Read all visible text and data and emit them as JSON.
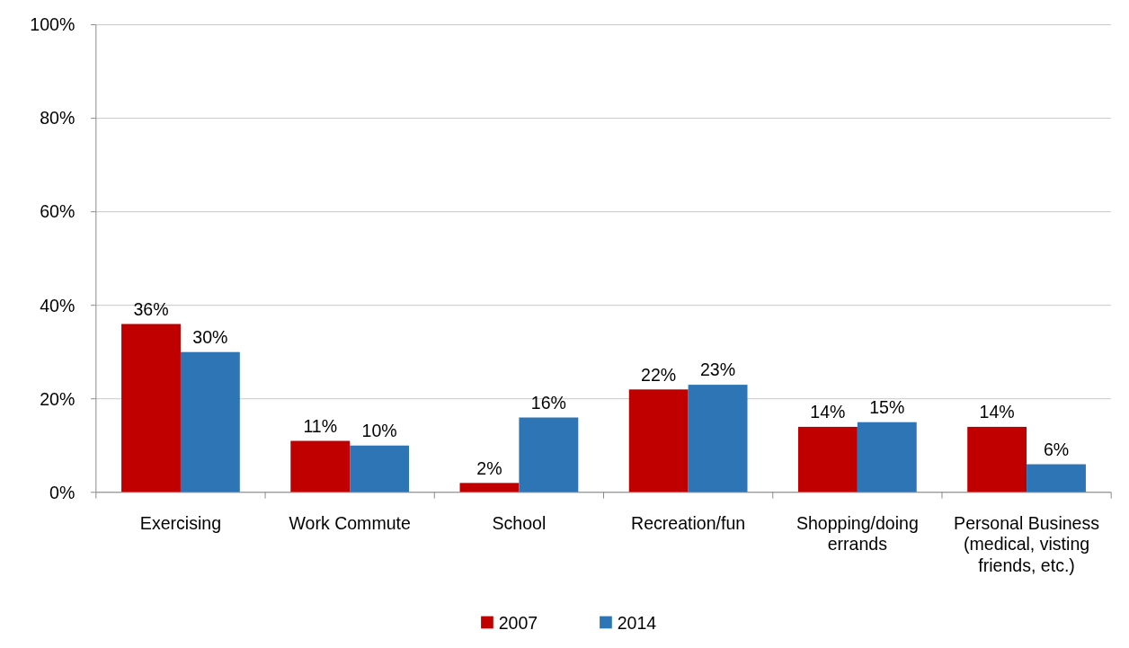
{
  "chart_data": {
    "type": "bar",
    "categories": [
      "Exercising",
      "Work Commute",
      "School",
      "Recreation/fun",
      "Shopping/doing errands",
      "Personal Business (medical, visting friends, etc.)"
    ],
    "series": [
      {
        "name": "2007",
        "color": "#c00000",
        "values": [
          36,
          11,
          2,
          22,
          14,
          14
        ],
        "value_labels": [
          "36%",
          "11%",
          "2%",
          "22%",
          "14%",
          "14%"
        ]
      },
      {
        "name": "2014",
        "color": "#2e75b6",
        "values": [
          30,
          10,
          16,
          23,
          15,
          6
        ],
        "value_labels": [
          "30%",
          "10%",
          "16%",
          "23%",
          "15%",
          "6%"
        ]
      }
    ],
    "ylim": [
      0,
      100
    ],
    "yticks": [
      {
        "value": 0,
        "label": "0%"
      },
      {
        "value": 20,
        "label": "20%"
      },
      {
        "value": 40,
        "label": "40%"
      },
      {
        "value": 60,
        "label": "60%"
      },
      {
        "value": 80,
        "label": "80%"
      },
      {
        "value": 100,
        "label": "100%"
      }
    ],
    "grid": "y",
    "legend": "bottom"
  }
}
